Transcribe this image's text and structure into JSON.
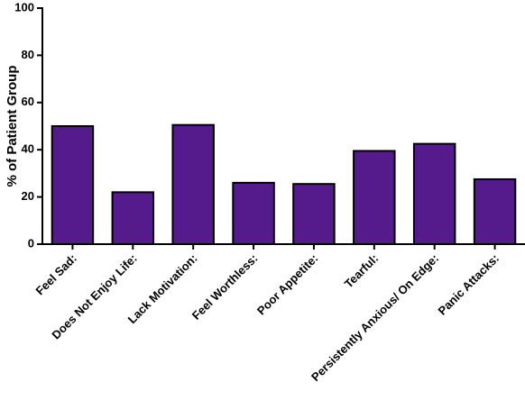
{
  "chart_data": {
    "type": "bar",
    "y_label": "% of Patient Group",
    "categories": [
      "Feel Sad:",
      "Does Not Enjoy Life:",
      "Lack Motivation:",
      "Feel Worthless:",
      "Poor Appetite:",
      "Tearful:",
      "Persistently Anxious/ On Edge:",
      "Panic Attacks:"
    ],
    "values": [
      50,
      22,
      50.5,
      26,
      25.5,
      39.5,
      42.5,
      27.5
    ],
    "color": "#551a8b",
    "ylim": [
      0,
      100
    ],
    "yticks": [
      0,
      20,
      40,
      60,
      80,
      100
    ]
  }
}
